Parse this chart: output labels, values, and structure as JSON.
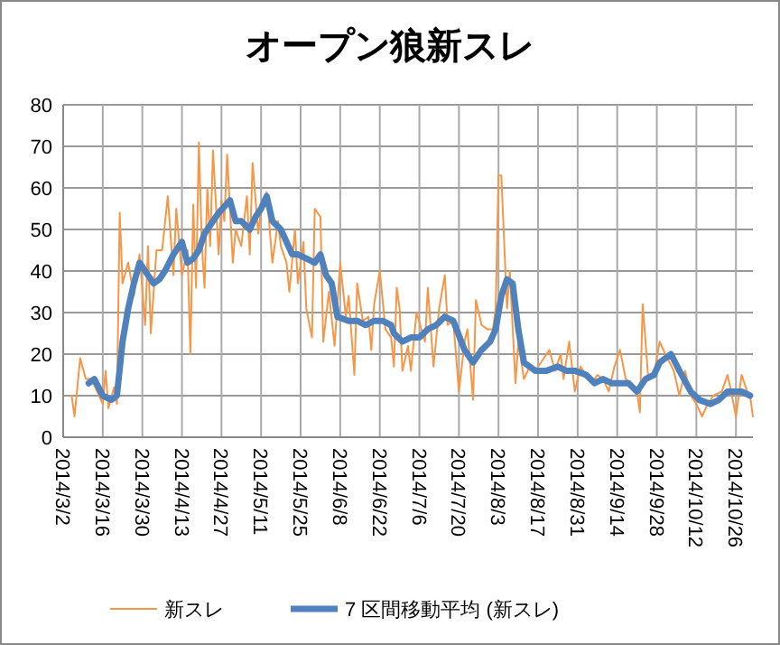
{
  "chart_data": {
    "type": "line",
    "title": "オープン狼新スレ",
    "grid": true,
    "legend": "bottom",
    "xlim": [
      "2014-03-02",
      "2014-11-01"
    ],
    "xticks": [
      {
        "value": "2014-03-02",
        "label": "2014/3/2"
      },
      {
        "value": "2014-03-16",
        "label": "2014/3/16"
      },
      {
        "value": "2014-03-30",
        "label": "2014/3/30"
      },
      {
        "value": "2014-04-13",
        "label": "2014/4/13"
      },
      {
        "value": "2014-04-27",
        "label": "2014/4/27"
      },
      {
        "value": "2014-05-11",
        "label": "2014/5/11"
      },
      {
        "value": "2014-05-25",
        "label": "2014/5/25"
      },
      {
        "value": "2014-06-08",
        "label": "2014/6/8"
      },
      {
        "value": "2014-06-22",
        "label": "2014/6/22"
      },
      {
        "value": "2014-07-06",
        "label": "2014/7/6"
      },
      {
        "value": "2014-07-20",
        "label": "2014/7/20"
      },
      {
        "value": "2014-08-03",
        "label": "2014/8/3"
      },
      {
        "value": "2014-08-17",
        "label": "2014/8/17"
      },
      {
        "value": "2014-08-31",
        "label": "2014/8/31"
      },
      {
        "value": "2014-09-14",
        "label": "2014/9/14"
      },
      {
        "value": "2014-09-28",
        "label": "2014/9/28"
      },
      {
        "value": "2014-10-12",
        "label": "2014/10/12"
      },
      {
        "value": "2014-10-26",
        "label": "2014/10/26"
      }
    ],
    "ylim": [
      0,
      80
    ],
    "yticks": [
      0,
      10,
      20,
      30,
      40,
      50,
      60,
      70,
      80
    ],
    "series": [
      {
        "name": "新スレ",
        "color": "#f79646",
        "x": [
          "2014-03-05",
          "2014-03-06",
          "2014-03-08",
          "2014-03-10",
          "2014-03-12",
          "2014-03-14",
          "2014-03-16",
          "2014-03-17",
          "2014-03-18",
          "2014-03-20",
          "2014-03-21",
          "2014-03-22",
          "2014-03-23",
          "2014-03-25",
          "2014-03-27",
          "2014-03-29",
          "2014-03-31",
          "2014-04-01",
          "2014-04-02",
          "2014-04-04",
          "2014-04-06",
          "2014-04-08",
          "2014-04-10",
          "2014-04-11",
          "2014-04-13",
          "2014-04-15",
          "2014-04-16",
          "2014-04-17",
          "2014-04-18",
          "2014-04-19",
          "2014-04-20",
          "2014-04-21",
          "2014-04-22",
          "2014-04-23",
          "2014-04-24",
          "2014-04-26",
          "2014-04-27",
          "2014-04-28",
          "2014-04-29",
          "2014-05-01",
          "2014-05-02",
          "2014-05-04",
          "2014-05-06",
          "2014-05-07",
          "2014-05-08",
          "2014-05-10",
          "2014-05-11",
          "2014-05-13",
          "2014-05-15",
          "2014-05-17",
          "2014-05-18",
          "2014-05-20",
          "2014-05-21",
          "2014-05-23",
          "2014-05-24",
          "2014-05-26",
          "2014-05-27",
          "2014-05-29",
          "2014-05-30",
          "2014-06-01",
          "2014-06-02",
          "2014-06-04",
          "2014-06-06",
          "2014-06-08",
          "2014-06-10",
          "2014-06-11",
          "2014-06-13",
          "2014-06-14",
          "2014-06-16",
          "2014-06-18",
          "2014-06-19",
          "2014-06-20",
          "2014-06-22",
          "2014-06-24",
          "2014-06-26",
          "2014-06-27",
          "2014-06-28",
          "2014-06-29",
          "2014-06-30",
          "2014-07-02",
          "2014-07-03",
          "2014-07-05",
          "2014-07-08",
          "2014-07-09",
          "2014-07-11",
          "2014-07-13",
          "2014-07-15",
          "2014-07-16",
          "2014-07-18",
          "2014-07-20",
          "2014-07-22",
          "2014-07-23",
          "2014-07-25",
          "2014-07-26",
          "2014-07-28",
          "2014-07-30",
          "2014-08-01",
          "2014-08-02",
          "2014-08-03",
          "2014-08-04",
          "2014-08-06",
          "2014-08-07",
          "2014-08-09",
          "2014-08-10",
          "2014-08-12",
          "2014-08-14",
          "2014-08-16",
          "2014-08-18",
          "2014-08-21",
          "2014-08-23",
          "2014-08-25",
          "2014-08-26",
          "2014-08-28",
          "2014-08-30",
          "2014-09-01",
          "2014-09-03",
          "2014-09-05",
          "2014-09-07",
          "2014-09-09",
          "2014-09-11",
          "2014-09-13",
          "2014-09-15",
          "2014-09-17",
          "2014-09-19",
          "2014-09-21",
          "2014-09-22",
          "2014-09-23",
          "2014-09-25",
          "2014-09-27",
          "2014-09-29",
          "2014-10-01",
          "2014-10-04",
          "2014-10-06",
          "2014-10-08",
          "2014-10-10",
          "2014-10-12",
          "2014-10-14",
          "2014-10-16",
          "2014-10-18",
          "2014-10-21",
          "2014-10-23",
          "2014-10-24",
          "2014-10-26",
          "2014-10-28",
          "2014-10-30",
          "2014-10-31",
          "2014-11-01"
        ],
        "values": [
          10,
          5,
          19,
          14,
          14,
          11,
          8,
          16,
          7,
          12,
          8,
          54,
          37,
          42,
          34,
          44,
          27,
          46,
          25,
          45,
          45,
          58,
          39,
          55,
          39,
          45,
          20,
          56,
          36,
          71,
          47,
          36,
          60,
          46,
          69,
          44,
          57,
          52,
          68,
          42,
          50,
          46,
          58,
          44,
          66,
          49,
          55,
          59,
          42,
          52,
          46,
          42,
          35,
          50,
          37,
          47,
          31,
          24,
          55,
          53,
          23,
          35,
          22,
          42,
          29,
          34,
          15,
          37,
          28,
          29,
          21,
          32,
          40,
          26,
          24,
          17,
          36,
          31,
          16,
          22,
          16,
          30,
          23,
          36,
          17,
          31,
          39,
          27,
          28,
          11,
          23,
          26,
          9,
          33,
          27,
          26,
          26,
          31,
          63,
          63,
          31,
          40,
          13,
          23,
          14,
          17,
          16,
          18,
          21,
          16,
          20,
          14,
          23,
          11,
          17,
          15,
          13,
          15,
          14,
          11,
          17,
          21,
          14,
          13,
          11,
          6,
          32,
          14,
          15,
          23,
          20,
          16,
          10,
          16,
          10,
          8,
          5,
          8,
          10,
          11,
          15,
          12,
          5,
          15,
          11,
          10,
          5
        ]
      },
      {
        "name": "7 区間移動平均 (新スレ)",
        "color": "#4f81bd",
        "x": [
          "2014-03-11",
          "2014-03-13",
          "2014-03-16",
          "2014-03-19",
          "2014-03-21",
          "2014-03-23",
          "2014-03-25",
          "2014-03-27",
          "2014-03-29",
          "2014-04-01",
          "2014-04-03",
          "2014-04-05",
          "2014-04-07",
          "2014-04-10",
          "2014-04-13",
          "2014-04-15",
          "2014-04-17",
          "2014-04-19",
          "2014-04-21",
          "2014-04-24",
          "2014-04-26",
          "2014-04-30",
          "2014-05-02",
          "2014-05-04",
          "2014-05-07",
          "2014-05-09",
          "2014-05-11",
          "2014-05-13",
          "2014-05-15",
          "2014-05-18",
          "2014-05-20",
          "2014-05-22",
          "2014-05-24",
          "2014-05-27",
          "2014-05-30",
          "2014-06-01",
          "2014-06-03",
          "2014-06-05",
          "2014-06-07",
          "2014-06-11",
          "2014-06-14",
          "2014-06-17",
          "2014-06-20",
          "2014-06-23",
          "2014-06-26",
          "2014-06-27",
          "2014-06-30",
          "2014-07-03",
          "2014-07-06",
          "2014-07-09",
          "2014-07-12",
          "2014-07-15",
          "2014-07-18",
          "2014-07-22",
          "2014-07-25",
          "2014-07-28",
          "2014-07-31",
          "2014-08-02",
          "2014-08-04",
          "2014-08-06",
          "2014-08-08",
          "2014-08-10",
          "2014-08-12",
          "2014-08-16",
          "2014-08-20",
          "2014-08-24",
          "2014-08-27",
          "2014-08-30",
          "2014-09-03",
          "2014-09-06",
          "2014-09-09",
          "2014-09-12",
          "2014-09-15",
          "2014-09-18",
          "2014-09-21",
          "2014-09-24",
          "2014-09-27",
          "2014-09-29",
          "2014-10-03",
          "2014-10-06",
          "2014-10-10",
          "2014-10-13",
          "2014-10-17",
          "2014-10-20",
          "2014-10-23",
          "2014-10-28",
          "2014-10-31"
        ],
        "values": [
          13,
          14,
          10,
          9,
          10,
          23,
          31,
          37,
          42,
          39,
          37,
          38,
          40,
          44,
          47,
          42,
          43,
          45,
          49,
          52,
          54,
          57,
          52,
          52,
          50,
          53,
          55,
          58,
          52,
          50,
          47,
          44,
          44,
          43,
          42,
          44,
          39,
          37,
          29,
          28,
          28,
          27,
          28,
          28,
          27,
          25,
          23,
          24,
          24,
          26,
          27,
          29,
          28,
          21,
          18,
          21,
          23,
          26,
          34,
          38,
          37,
          26,
          18,
          16,
          16,
          17,
          16,
          16,
          15,
          13,
          14,
          13,
          13,
          13,
          11,
          14,
          15,
          18,
          20,
          16,
          11,
          9,
          8,
          9,
          11,
          11,
          10
        ]
      }
    ]
  }
}
